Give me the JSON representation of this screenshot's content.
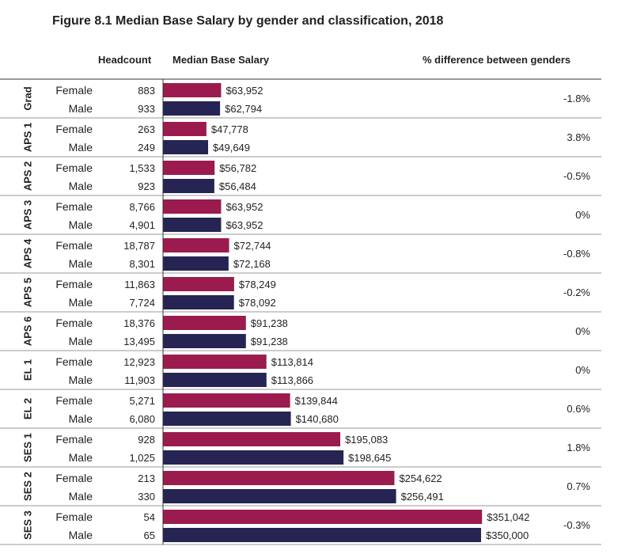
{
  "chart_data": {
    "type": "bar",
    "orientation": "horizontal",
    "title": "Figure 8.1 Median Base Salary by gender and classification, 2018",
    "headers": {
      "headcount": "Headcount",
      "salary": "Median Base Salary",
      "difference": "% difference between genders"
    },
    "xlim": [
      0,
      350000
    ],
    "colors": {
      "female": "#9b1b4e",
      "male": "#262452"
    },
    "groups": [
      {
        "name": "Grad",
        "diff": "-1.8%",
        "rows": [
          {
            "gender": "Female",
            "headcount": "883",
            "value": 63952,
            "label": "$63,952"
          },
          {
            "gender": "Male",
            "headcount": "933",
            "value": 62794,
            "label": "$62,794"
          }
        ]
      },
      {
        "name": "APS 1",
        "diff": "3.8%",
        "rows": [
          {
            "gender": "Female",
            "headcount": "263",
            "value": 47778,
            "label": "$47,778"
          },
          {
            "gender": "Male",
            "headcount": "249",
            "value": 49649,
            "label": "$49,649"
          }
        ]
      },
      {
        "name": "APS 2",
        "diff": "-0.5%",
        "rows": [
          {
            "gender": "Female",
            "headcount": "1,533",
            "value": 56782,
            "label": "$56,782"
          },
          {
            "gender": "Male",
            "headcount": "923",
            "value": 56484,
            "label": "$56,484"
          }
        ]
      },
      {
        "name": "APS 3",
        "diff": "0%",
        "rows": [
          {
            "gender": "Female",
            "headcount": "8,766",
            "value": 63952,
            "label": "$63,952"
          },
          {
            "gender": "Male",
            "headcount": "4,901",
            "value": 63952,
            "label": "$63,952"
          }
        ]
      },
      {
        "name": "APS 4",
        "diff": "-0.8%",
        "rows": [
          {
            "gender": "Female",
            "headcount": "18,787",
            "value": 72744,
            "label": "$72,744"
          },
          {
            "gender": "Male",
            "headcount": "8,301",
            "value": 72168,
            "label": "$72,168"
          }
        ]
      },
      {
        "name": "APS 5",
        "diff": "-0.2%",
        "rows": [
          {
            "gender": "Female",
            "headcount": "11,863",
            "value": 78249,
            "label": "$78,249"
          },
          {
            "gender": "Male",
            "headcount": "7,724",
            "value": 78092,
            "label": "$78,092"
          }
        ]
      },
      {
        "name": "APS 6",
        "diff": "0%",
        "rows": [
          {
            "gender": "Female",
            "headcount": "18,376",
            "value": 91238,
            "label": "$91,238"
          },
          {
            "gender": "Male",
            "headcount": "13,495",
            "value": 91238,
            "label": "$91,238"
          }
        ]
      },
      {
        "name": "EL 1",
        "diff": "0%",
        "rows": [
          {
            "gender": "Female",
            "headcount": "12,923",
            "value": 113814,
            "label": "$113,814"
          },
          {
            "gender": "Male",
            "headcount": "11,903",
            "value": 113866,
            "label": "$113,866"
          }
        ]
      },
      {
        "name": "EL 2",
        "diff": "0.6%",
        "rows": [
          {
            "gender": "Female",
            "headcount": "5,271",
            "value": 139844,
            "label": "$139,844"
          },
          {
            "gender": "Male",
            "headcount": "6,080",
            "value": 140680,
            "label": "$140,680"
          }
        ]
      },
      {
        "name": "SES 1",
        "diff": "1.8%",
        "rows": [
          {
            "gender": "Female",
            "headcount": "928",
            "value": 195083,
            "label": "$195,083"
          },
          {
            "gender": "Male",
            "headcount": "1,025",
            "value": 198645,
            "label": "$198,645"
          }
        ]
      },
      {
        "name": "SES 2",
        "diff": "0.7%",
        "rows": [
          {
            "gender": "Female",
            "headcount": "213",
            "value": 254622,
            "label": "$254,622"
          },
          {
            "gender": "Male",
            "headcount": "330",
            "value": 256491,
            "label": "$256,491"
          }
        ]
      },
      {
        "name": "SES 3",
        "diff": "-0.3%",
        "rows": [
          {
            "gender": "Female",
            "headcount": "54",
            "value": 351042,
            "label": "$351,042"
          },
          {
            "gender": "Male",
            "headcount": "65",
            "value": 350000,
            "label": "$350,000"
          }
        ]
      }
    ]
  }
}
